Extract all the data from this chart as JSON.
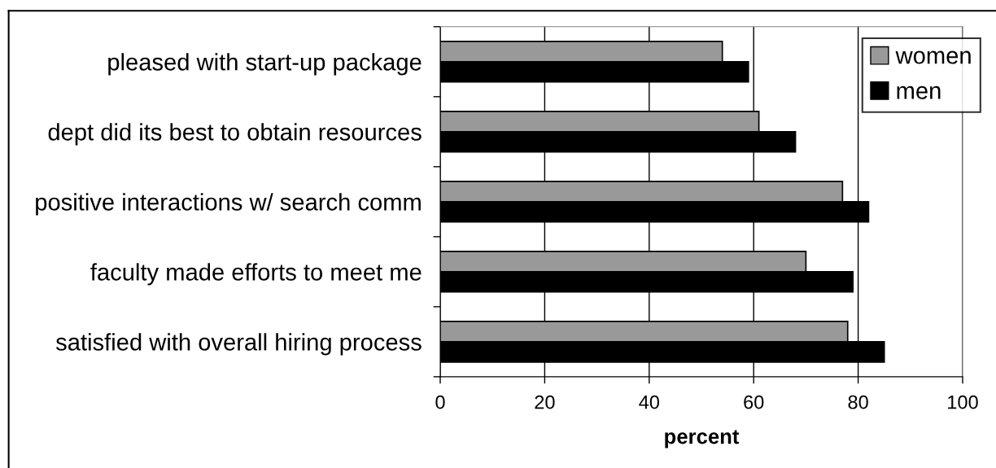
{
  "chart_data": {
    "type": "bar",
    "orientation": "horizontal",
    "categories": [
      "pleased with start-up package",
      "dept did its best to obtain resources",
      "positive interactions w/ search comm",
      "faculty made efforts to meet me",
      "satisfied with overall hiring process"
    ],
    "series": [
      {
        "name": "women",
        "color": "#999999",
        "values": [
          54,
          61,
          77,
          70,
          78
        ]
      },
      {
        "name": "men",
        "color": "#000000",
        "values": [
          59,
          68,
          82,
          79,
          85
        ]
      }
    ],
    "xlabel": "percent",
    "xlim": [
      0,
      100
    ],
    "xticks": [
      0,
      20,
      40,
      60,
      80,
      100
    ],
    "grid": "x",
    "legend": "top right"
  }
}
